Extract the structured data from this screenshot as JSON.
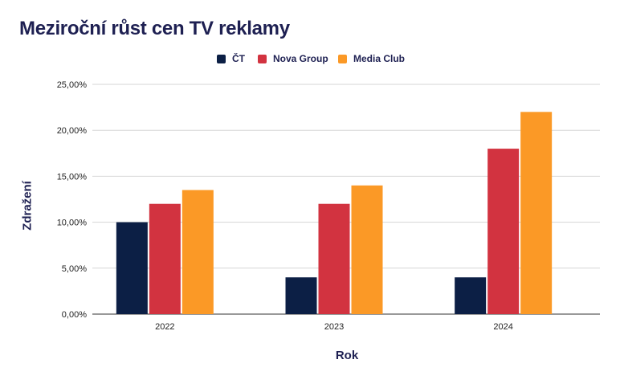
{
  "chart_data": {
    "type": "bar",
    "title": "Meziroční růst cen TV reklamy",
    "xlabel": "Rok",
    "ylabel": "Zdražení",
    "categories": [
      "2022",
      "2023",
      "2024"
    ],
    "series": [
      {
        "name": "ČT",
        "color": "#0c1f45",
        "values": [
          10.0,
          4.0,
          4.0
        ]
      },
      {
        "name": "Nova Group",
        "color": "#d23340",
        "values": [
          12.0,
          12.0,
          18.0
        ]
      },
      {
        "name": "Media Club",
        "color": "#fb9926",
        "values": [
          13.5,
          14.0,
          22.0
        ]
      }
    ],
    "ylim": [
      0,
      25
    ],
    "yticks": [
      "0,00%",
      "5,00%",
      "10,00%",
      "15,00%",
      "20,00%",
      "25,00%"
    ],
    "grid": true,
    "legend_position": "top"
  }
}
